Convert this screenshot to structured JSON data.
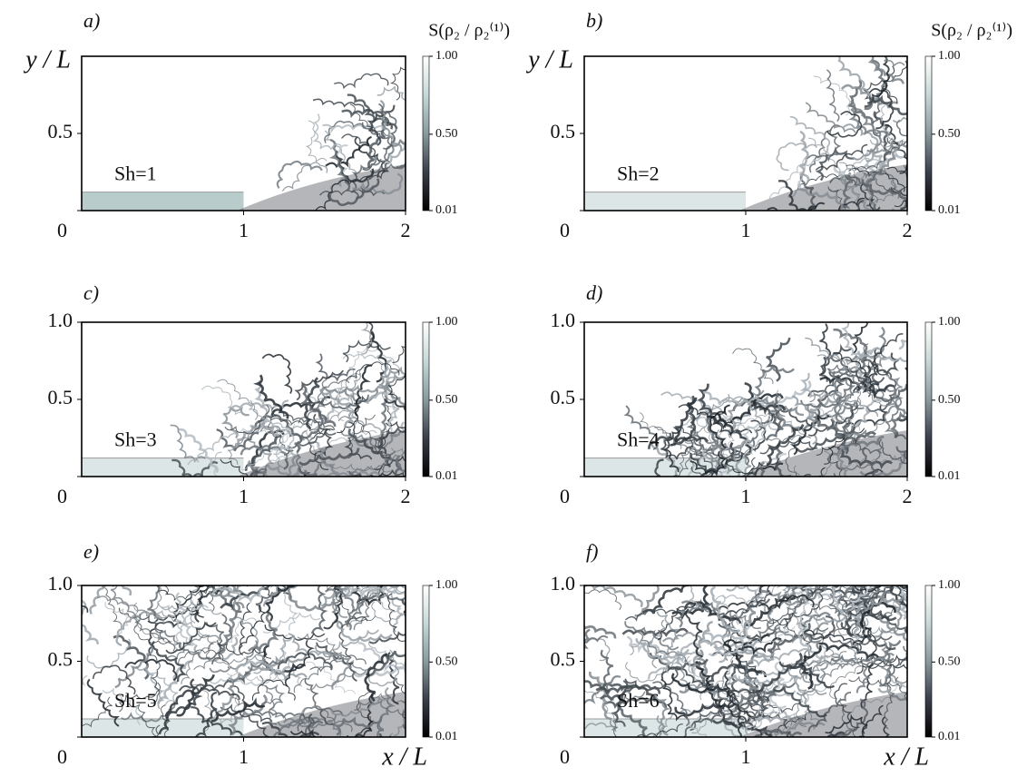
{
  "figure": {
    "panels": [
      {
        "label": "a)",
        "annotation": "Sh=1",
        "xlim": [
          0,
          2
        ],
        "ylim": [
          0,
          1
        ],
        "xticks": [
          1,
          2
        ],
        "yticks": [
          0,
          0.5
        ],
        "y_label": "y / L",
        "colorbar": {
          "label": "S(ρ₂ / ρ₂⁽¹⁾)",
          "clim": [
            0.01,
            1
          ],
          "ticks": [
            {
              "value": 1,
              "label": "1.00"
            },
            {
              "value": 0.5,
              "label": "0.50"
            },
            {
              "value": 0.01,
              "label": "0.01"
            }
          ]
        }
      },
      {
        "label": "b)",
        "annotation": "Sh=2",
        "xlim": [
          0,
          2
        ],
        "ylim": [
          0,
          1
        ],
        "xticks": [
          1,
          2
        ],
        "yticks": [
          0,
          0.5
        ],
        "y_label": "y / L",
        "colorbar": {
          "label": "S(ρ₂ / ρ₂⁽¹⁾)",
          "clim": [
            0.01,
            1
          ],
          "ticks": [
            {
              "value": 1,
              "label": "1.00"
            },
            {
              "value": 0.5,
              "label": "0.50"
            },
            {
              "value": 0.01,
              "label": "0.01"
            }
          ]
        }
      },
      {
        "label": "c)",
        "annotation": "Sh=3",
        "xlim": [
          0,
          2
        ],
        "ylim": [
          0,
          1
        ],
        "xticks": [
          1,
          2
        ],
        "yticks": [
          0,
          0.5,
          {
            "value": 1,
            "label": "1.0"
          }
        ],
        "colorbar": {
          "clim": [
            0.01,
            1
          ],
          "ticks": [
            {
              "value": 1,
              "label": "1.00"
            },
            {
              "value": 0.5,
              "label": "0.50"
            },
            {
              "value": 0.01,
              "label": "0.01"
            }
          ]
        }
      },
      {
        "label": "d)",
        "annotation": "Sh=4",
        "xlim": [
          0,
          2
        ],
        "ylim": [
          0,
          1
        ],
        "xticks": [
          1,
          2
        ],
        "yticks": [
          0,
          0.5,
          {
            "value": 1,
            "label": "1.0"
          }
        ],
        "colorbar": {
          "clim": [
            0.01,
            1
          ],
          "ticks": [
            {
              "value": 1,
              "label": "1.00"
            },
            {
              "value": 0.5,
              "label": "0.50"
            },
            {
              "value": 0.01,
              "label": "0.01"
            }
          ]
        }
      },
      {
        "label": "e)",
        "annotation": "Sh=5",
        "xlim": [
          0,
          2
        ],
        "ylim": [
          0,
          1
        ],
        "xticks": [
          1
        ],
        "yticks": [
          0,
          0.5,
          {
            "value": 1,
            "label": "1.0"
          }
        ],
        "x_label": "x / L",
        "colorbar": {
          "clim": [
            0.01,
            1
          ],
          "ticks": [
            {
              "value": 1,
              "label": "1.00"
            },
            {
              "value": 0.5,
              "label": "0.50"
            },
            {
              "value": 0.01,
              "label": "0.01"
            }
          ]
        }
      },
      {
        "label": "f)",
        "annotation": "Sh=6",
        "xlim": [
          0,
          2
        ],
        "ylim": [
          0,
          1
        ],
        "xticks": [
          1
        ],
        "yticks": [
          0,
          0.5,
          {
            "value": 1,
            "label": "1.0"
          }
        ],
        "x_label": "x / L",
        "colorbar": {
          "clim": [
            0.01,
            1
          ],
          "ticks": [
            {
              "value": 1,
              "label": "1.00"
            },
            {
              "value": 0.5,
              "label": "0.50"
            },
            {
              "value": 0.01,
              "label": "0.01"
            }
          ]
        }
      }
    ]
  }
}
